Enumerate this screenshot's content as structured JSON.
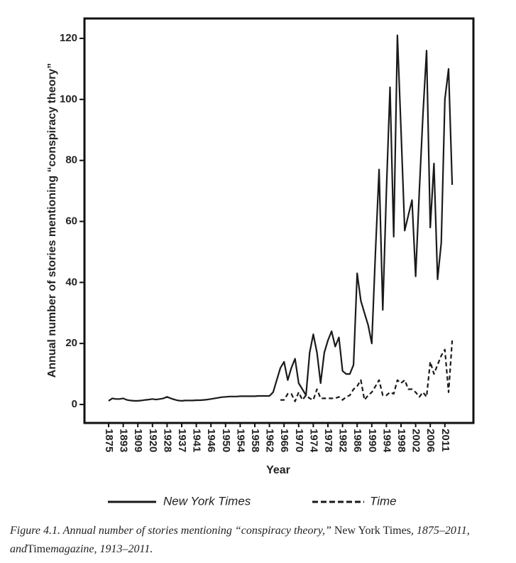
{
  "chart_data": {
    "type": "line",
    "y_label": "Annual number of stories mentioning “conspiracy theory”",
    "x_label": "Year",
    "categories": [
      "1875",
      null,
      null,
      null,
      "1893",
      null,
      null,
      null,
      "1909",
      null,
      null,
      null,
      "1920",
      null,
      null,
      null,
      "1928",
      null,
      null,
      null,
      "1937",
      null,
      null,
      null,
      "1941",
      null,
      null,
      null,
      "1946",
      null,
      null,
      null,
      "1950",
      null,
      null,
      null,
      "1954",
      null,
      null,
      null,
      "1958",
      null,
      null,
      null,
      "1962",
      null,
      null,
      null,
      "1966",
      null,
      null,
      null,
      "1970",
      null,
      null,
      null,
      "1974",
      null,
      null,
      null,
      "1978",
      null,
      null,
      null,
      "1982",
      null,
      null,
      null,
      "1986",
      null,
      null,
      null,
      "1990",
      null,
      null,
      null,
      "1994",
      null,
      null,
      null,
      "1998",
      null,
      null,
      null,
      "2002",
      null,
      null,
      null,
      "2006",
      null,
      null,
      null,
      "2011",
      null,
      null
    ],
    "series": [
      {
        "name": "New York Times",
        "color": "#1a1a1a",
        "dashed": false,
        "values": [
          1.2,
          2,
          1.8,
          1.8,
          2,
          1.5,
          1.3,
          1.2,
          1.2,
          1.3,
          1.5,
          1.6,
          1.8,
          1.6,
          1.8,
          2,
          2.5,
          2,
          1.6,
          1.3,
          1.2,
          1.3,
          1.3,
          1.3,
          1.4,
          1.4,
          1.5,
          1.6,
          1.8,
          2,
          2.2,
          2.4,
          2.5,
          2.6,
          2.6,
          2.6,
          2.7,
          2.7,
          2.7,
          2.7,
          2.7,
          2.8,
          2.8,
          2.8,
          2.8,
          4,
          8,
          12,
          14,
          8,
          12,
          15,
          7,
          5,
          3,
          17,
          23,
          17,
          7,
          17,
          21,
          24,
          19,
          22,
          11,
          10,
          10,
          13,
          43,
          34,
          30,
          26,
          20,
          50,
          77,
          31,
          70,
          104,
          55,
          121,
          90,
          57,
          62,
          67,
          42,
          70,
          95,
          116,
          58,
          79,
          41,
          53,
          100,
          110,
          72
        ]
      },
      {
        "name": "Time",
        "color": "#1a1a1a",
        "dashed": true,
        "values": [
          null,
          null,
          null,
          null,
          null,
          null,
          null,
          null,
          null,
          null,
          null,
          null,
          null,
          null,
          null,
          null,
          null,
          null,
          null,
          null,
          null,
          null,
          null,
          null,
          null,
          null,
          null,
          null,
          null,
          null,
          null,
          null,
          null,
          null,
          null,
          null,
          null,
          null,
          null,
          null,
          null,
          null,
          null,
          null,
          null,
          null,
          null,
          1.5,
          1.5,
          3.5,
          3.5,
          1,
          4,
          1.5,
          3,
          2,
          1.5,
          5,
          2,
          2,
          2,
          2,
          2,
          2.5,
          1.5,
          2.5,
          3,
          5,
          6,
          8,
          1.5,
          3,
          4,
          6,
          8,
          3,
          3,
          4,
          3.5,
          8,
          7,
          8,
          5,
          5,
          4,
          2.5,
          4,
          2.5,
          14,
          10,
          13,
          16,
          18,
          4,
          21
        ]
      }
    ],
    "ylim": [
      0,
      120
    ],
    "yticks": [
      0,
      20,
      40,
      60,
      80,
      100,
      120
    ],
    "caption": [
      "Figure 4.1. Annual number of stories mentioning “conspiracy theory,”",
      " New York Times",
      ", 1875–2011,",
      "and",
      "Time",
      "magazine, 1913–2011."
    ]
  }
}
